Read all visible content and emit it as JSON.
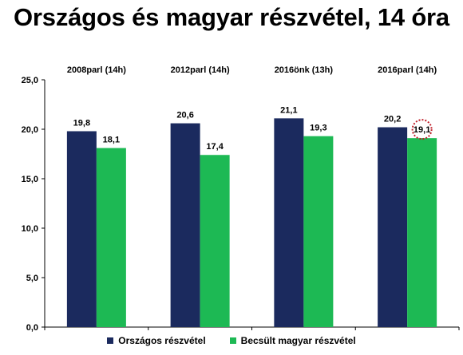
{
  "title": "Országos és magyar részvétel, 14 óra",
  "chart_data": {
    "type": "bar",
    "categories": [
      "2008parl (14h)",
      "2012parl (14h)",
      "2016önk (13h)",
      "2016parl (14h)"
    ],
    "series": [
      {
        "name": "Országos részvétel",
        "values": [
          19.8,
          20.6,
          21.1,
          20.2
        ],
        "color": "#1b2a5e",
        "labels": [
          "19,8",
          "20,6",
          "21,1",
          "20,2"
        ]
      },
      {
        "name": "Becsült magyar részvétel",
        "values": [
          18.1,
          17.4,
          19.3,
          19.1
        ],
        "color": "#1db954",
        "labels": [
          "18,1",
          "17,4",
          "19,3",
          "19,1"
        ]
      }
    ],
    "ylim": [
      0,
      25
    ],
    "yticks": [
      "0,0",
      "5,0",
      "10,0",
      "15,0",
      "20,0",
      "25,0"
    ],
    "legend_position": "bottom",
    "grid": false,
    "highlight": {
      "series": 1,
      "category": 3,
      "style": "dotted-circle",
      "color": "#c0202a"
    }
  }
}
